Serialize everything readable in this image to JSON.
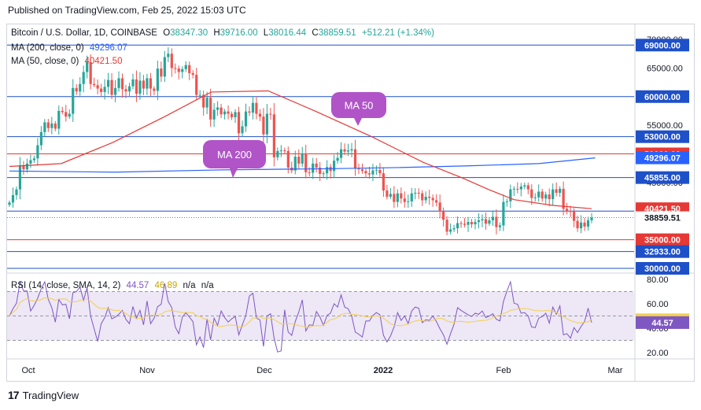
{
  "header": {
    "published": "Published on TradingView.com, Feb 25, 2022 15:03 UTC"
  },
  "legend": {
    "symbol": "Bitcoin / U.S. Dollar, 1D, COINBASE",
    "o_label": "O",
    "o": "38347.30",
    "h_label": "H",
    "h": "39716.00",
    "l_label": "L",
    "l": "38016.44",
    "c_label": "C",
    "c": "38859.51",
    "change": "+512.21 (+1.34%)",
    "ma200_label": "MA (200, close, 0)",
    "ma200_value": "49296.07",
    "ma50_label": "MA (50, close, 0)",
    "ma50_value": "40421.50",
    "rsi_label": "RSI (14, close, SMA, 14, 2)",
    "rsi_value": "44.57",
    "rsi_sma_value": "46.89",
    "na1": "n/a",
    "na2": "n/a"
  },
  "callouts": {
    "ma50": "MA 50",
    "ma200": "MA 200"
  },
  "footer": {
    "brand": "TradingView"
  },
  "colors": {
    "up": "#26a69a",
    "down": "#ef5350",
    "blue_line": "#1e50c8",
    "red_line": "#e53935",
    "ma200": "#2962ff",
    "ma50": "#e53935",
    "rsi": "#7e57c2",
    "rsi_sma": "#f2d050",
    "callout": "#b054c8",
    "rsi_band": "#ede7f6"
  },
  "chart_data": {
    "type": "candlestick",
    "price_axis": {
      "ticks": [
        70000,
        65000,
        60000,
        55000,
        50000,
        45000,
        40000,
        35000,
        30000
      ],
      "tick_labels": [
        "70000.00",
        "65000.00",
        "60000.00",
        "55000.00",
        "50000.00",
        "45000.00",
        "40000.00",
        "35000.00",
        "30000.00"
      ]
    },
    "x_axis": {
      "labels": [
        "Oct",
        "Nov",
        "Dec",
        "2022",
        "Feb",
        "Mar"
      ]
    },
    "horizontal_levels": [
      {
        "value": 69000,
        "label": "69000.00",
        "color": "blue"
      },
      {
        "value": 60000,
        "label": "60000.00",
        "color": "blue"
      },
      {
        "value": 53000,
        "label": "53000.00",
        "color": "blue"
      },
      {
        "value": 50000,
        "label": "50000.00",
        "color": "red"
      },
      {
        "value": 45855,
        "label": "45855.00",
        "color": "blue"
      },
      {
        "value": 40000,
        "label": "40000.00",
        "color": "blue"
      },
      {
        "value": 35000,
        "label": "35000.00",
        "color": "red"
      },
      {
        "value": 32933,
        "label": "32933.00",
        "color": "blue"
      },
      {
        "value": 30000,
        "label": "30000.00",
        "color": "blue"
      }
    ],
    "last_price": {
      "value": 38859.51,
      "label": "38859.51"
    },
    "ma200_last": {
      "value": 49296.07,
      "label": "49296.07"
    },
    "ma50_last": {
      "value": 40421.5,
      "label": "40421.50"
    },
    "closes": [
      41500,
      42800,
      43800,
      48000,
      47300,
      48300,
      48900,
      49200,
      51500,
      53800,
      55500,
      54500,
      55300,
      54400,
      57500,
      57300,
      56500,
      57000,
      61500,
      60900,
      62200,
      64300,
      66000,
      62200,
      62000,
      61400,
      60800,
      61700,
      62900,
      60300,
      61500,
      63200,
      61300,
      60900,
      61800,
      63000,
      60500,
      62800,
      61400,
      63200,
      61400,
      61000,
      64900,
      63500,
      66900,
      67500,
      65000,
      64900,
      64300,
      64800,
      65500,
      64100,
      63800,
      60300,
      60300,
      58100,
      59800,
      56000,
      57700,
      58100,
      56900,
      57400,
      57000,
      56400,
      57300,
      53600,
      54800,
      57400,
      57200,
      58900,
      57000,
      56500,
      53400,
      57000,
      56900,
      49400,
      50500,
      50600,
      50500,
      47600,
      47100,
      49500,
      48300,
      50000,
      46800,
      46700,
      48300,
      47600,
      46500,
      46600,
      47700,
      47000,
      48800,
      49300,
      50800,
      50400,
      50600,
      50800,
      47500,
      47300,
      47000,
      46600,
      46400,
      47100,
      47200,
      46600,
      43600,
      42500,
      43000,
      41600,
      43100,
      42200,
      41600,
      41700,
      43100,
      43200,
      43100,
      41900,
      42500,
      42300,
      41900,
      41500,
      40000,
      38500,
      36400,
      36800,
      37000,
      37900,
      37800,
      37600,
      38100,
      37700,
      38100,
      38400,
      38600,
      37800,
      38400,
      39000,
      37200,
      37500,
      41600,
      41700,
      43800,
      43900,
      43800,
      44300,
      44500,
      43800,
      42300,
      42400,
      43400,
      42200,
      42900,
      42100,
      43800,
      43200,
      43900,
      40400,
      40000,
      39900,
      38300,
      37000,
      38000,
      37300,
      38400,
      38860
    ],
    "ma200": {
      "start": 47000,
      "points": [
        [
          0,
          47000
        ],
        [
          30,
          46800
        ],
        [
          60,
          47200
        ],
        [
          90,
          47400
        ],
        [
          110,
          47600
        ],
        [
          130,
          47900
        ],
        [
          150,
          48300
        ],
        [
          166,
          49296.07
        ]
      ]
    },
    "ma50": {
      "points": [
        [
          0,
          47800
        ],
        [
          20,
          48300
        ],
        [
          40,
          52000
        ],
        [
          60,
          56500
        ],
        [
          78,
          60800
        ],
        [
          100,
          61000
        ],
        [
          118,
          57500
        ],
        [
          140,
          53000
        ],
        [
          160,
          48500
        ],
        [
          175,
          45800
        ],
        [
          185,
          43800
        ],
        [
          195,
          42000
        ],
        [
          210,
          41000
        ],
        [
          225,
          40421.5
        ]
      ]
    },
    "rsi_panel": {
      "ticks": [
        80,
        60,
        40,
        20
      ],
      "tick_labels": [
        "80.00",
        "60.00",
        "40.00",
        "20.00"
      ],
      "bands": [
        70,
        50,
        30
      ],
      "last_rsi": {
        "value": 44.57,
        "label": "44.57"
      },
      "last_sma": {
        "value": 46.89,
        "label": "46.89"
      }
    }
  }
}
